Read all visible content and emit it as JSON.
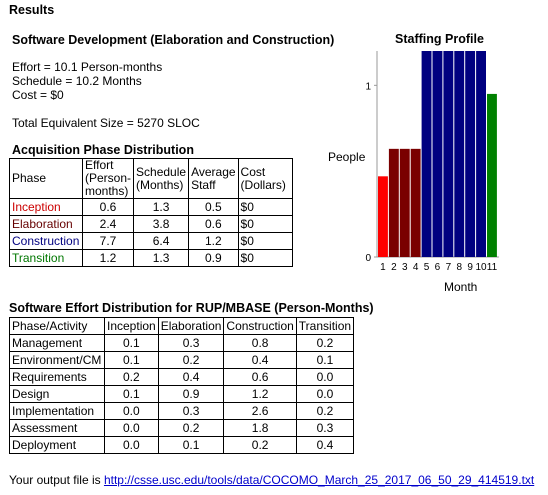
{
  "results_heading": "Results",
  "section_title": "Software Development (Elaboration and Construction)",
  "summary": {
    "effort": "Effort = 10.1 Person-months",
    "schedule": "Schedule = 10.2 Months",
    "cost": "Cost = $0",
    "total_size": "Total Equivalent Size = 5270 SLOC"
  },
  "acquisition": {
    "heading": "Acquisition Phase Distribution",
    "headers": {
      "phase": "Phase",
      "effort": "Effort (Person-months)",
      "schedule": "Schedule (Months)",
      "staff": "Average Staff",
      "cost": "Cost (Dollars)"
    },
    "rows": [
      {
        "phase": "Inception",
        "effort": "0.6",
        "schedule": "1.3",
        "staff": "0.5",
        "cost": "$0"
      },
      {
        "phase": "Elaboration",
        "effort": "2.4",
        "schedule": "3.8",
        "staff": "0.6",
        "cost": "$0"
      },
      {
        "phase": "Construction",
        "effort": "7.7",
        "schedule": "6.4",
        "staff": "1.2",
        "cost": "$0"
      },
      {
        "phase": "Transition",
        "effort": "1.2",
        "schedule": "1.3",
        "staff": "0.9",
        "cost": "$0"
      }
    ]
  },
  "effort_dist": {
    "heading": "Software Effort Distribution for RUP/MBASE (Person-Months)",
    "headers": [
      "Phase/Activity",
      "Inception",
      "Elaboration",
      "Construction",
      "Transition"
    ],
    "rows": [
      [
        "Management",
        "0.1",
        "0.3",
        "0.8",
        "0.2"
      ],
      [
        "Environment/CM",
        "0.1",
        "0.2",
        "0.4",
        "0.1"
      ],
      [
        "Requirements",
        "0.2",
        "0.4",
        "0.6",
        "0.0"
      ],
      [
        "Design",
        "0.1",
        "0.9",
        "1.2",
        "0.0"
      ],
      [
        "Implementation",
        "0.0",
        "0.3",
        "2.6",
        "0.2"
      ],
      [
        "Assessment",
        "0.0",
        "0.2",
        "1.8",
        "0.3"
      ],
      [
        "Deployment",
        "0.0",
        "0.1",
        "0.2",
        "0.4"
      ]
    ]
  },
  "footer": {
    "prefix": "Your output file is ",
    "link": "http://csse.usc.edu/tools/data/COCOMO_March_25_2017_06_50_29_414519.txt"
  },
  "colors": {
    "inception": "#ff0000",
    "elaboration": "#7a0000",
    "construction": "#000080",
    "transition": "#008000",
    "link": "#0000cc"
  },
  "chart_data": {
    "type": "bar",
    "title": "Staffing Profile",
    "xlabel": "Month",
    "ylabel": "People",
    "categories": [
      "1",
      "2",
      "3",
      "4",
      "5",
      "6",
      "7",
      "8",
      "9",
      "10",
      "11"
    ],
    "values": [
      0.47,
      0.63,
      0.63,
      0.63,
      1.2,
      1.2,
      1.2,
      1.2,
      1.2,
      1.2,
      0.95
    ],
    "bar_phase": [
      "inception",
      "elaboration",
      "elaboration",
      "elaboration",
      "construction",
      "construction",
      "construction",
      "construction",
      "construction",
      "construction",
      "transition"
    ],
    "yticks": [
      "0",
      "1"
    ],
    "ylim": [
      0,
      1.2
    ]
  }
}
